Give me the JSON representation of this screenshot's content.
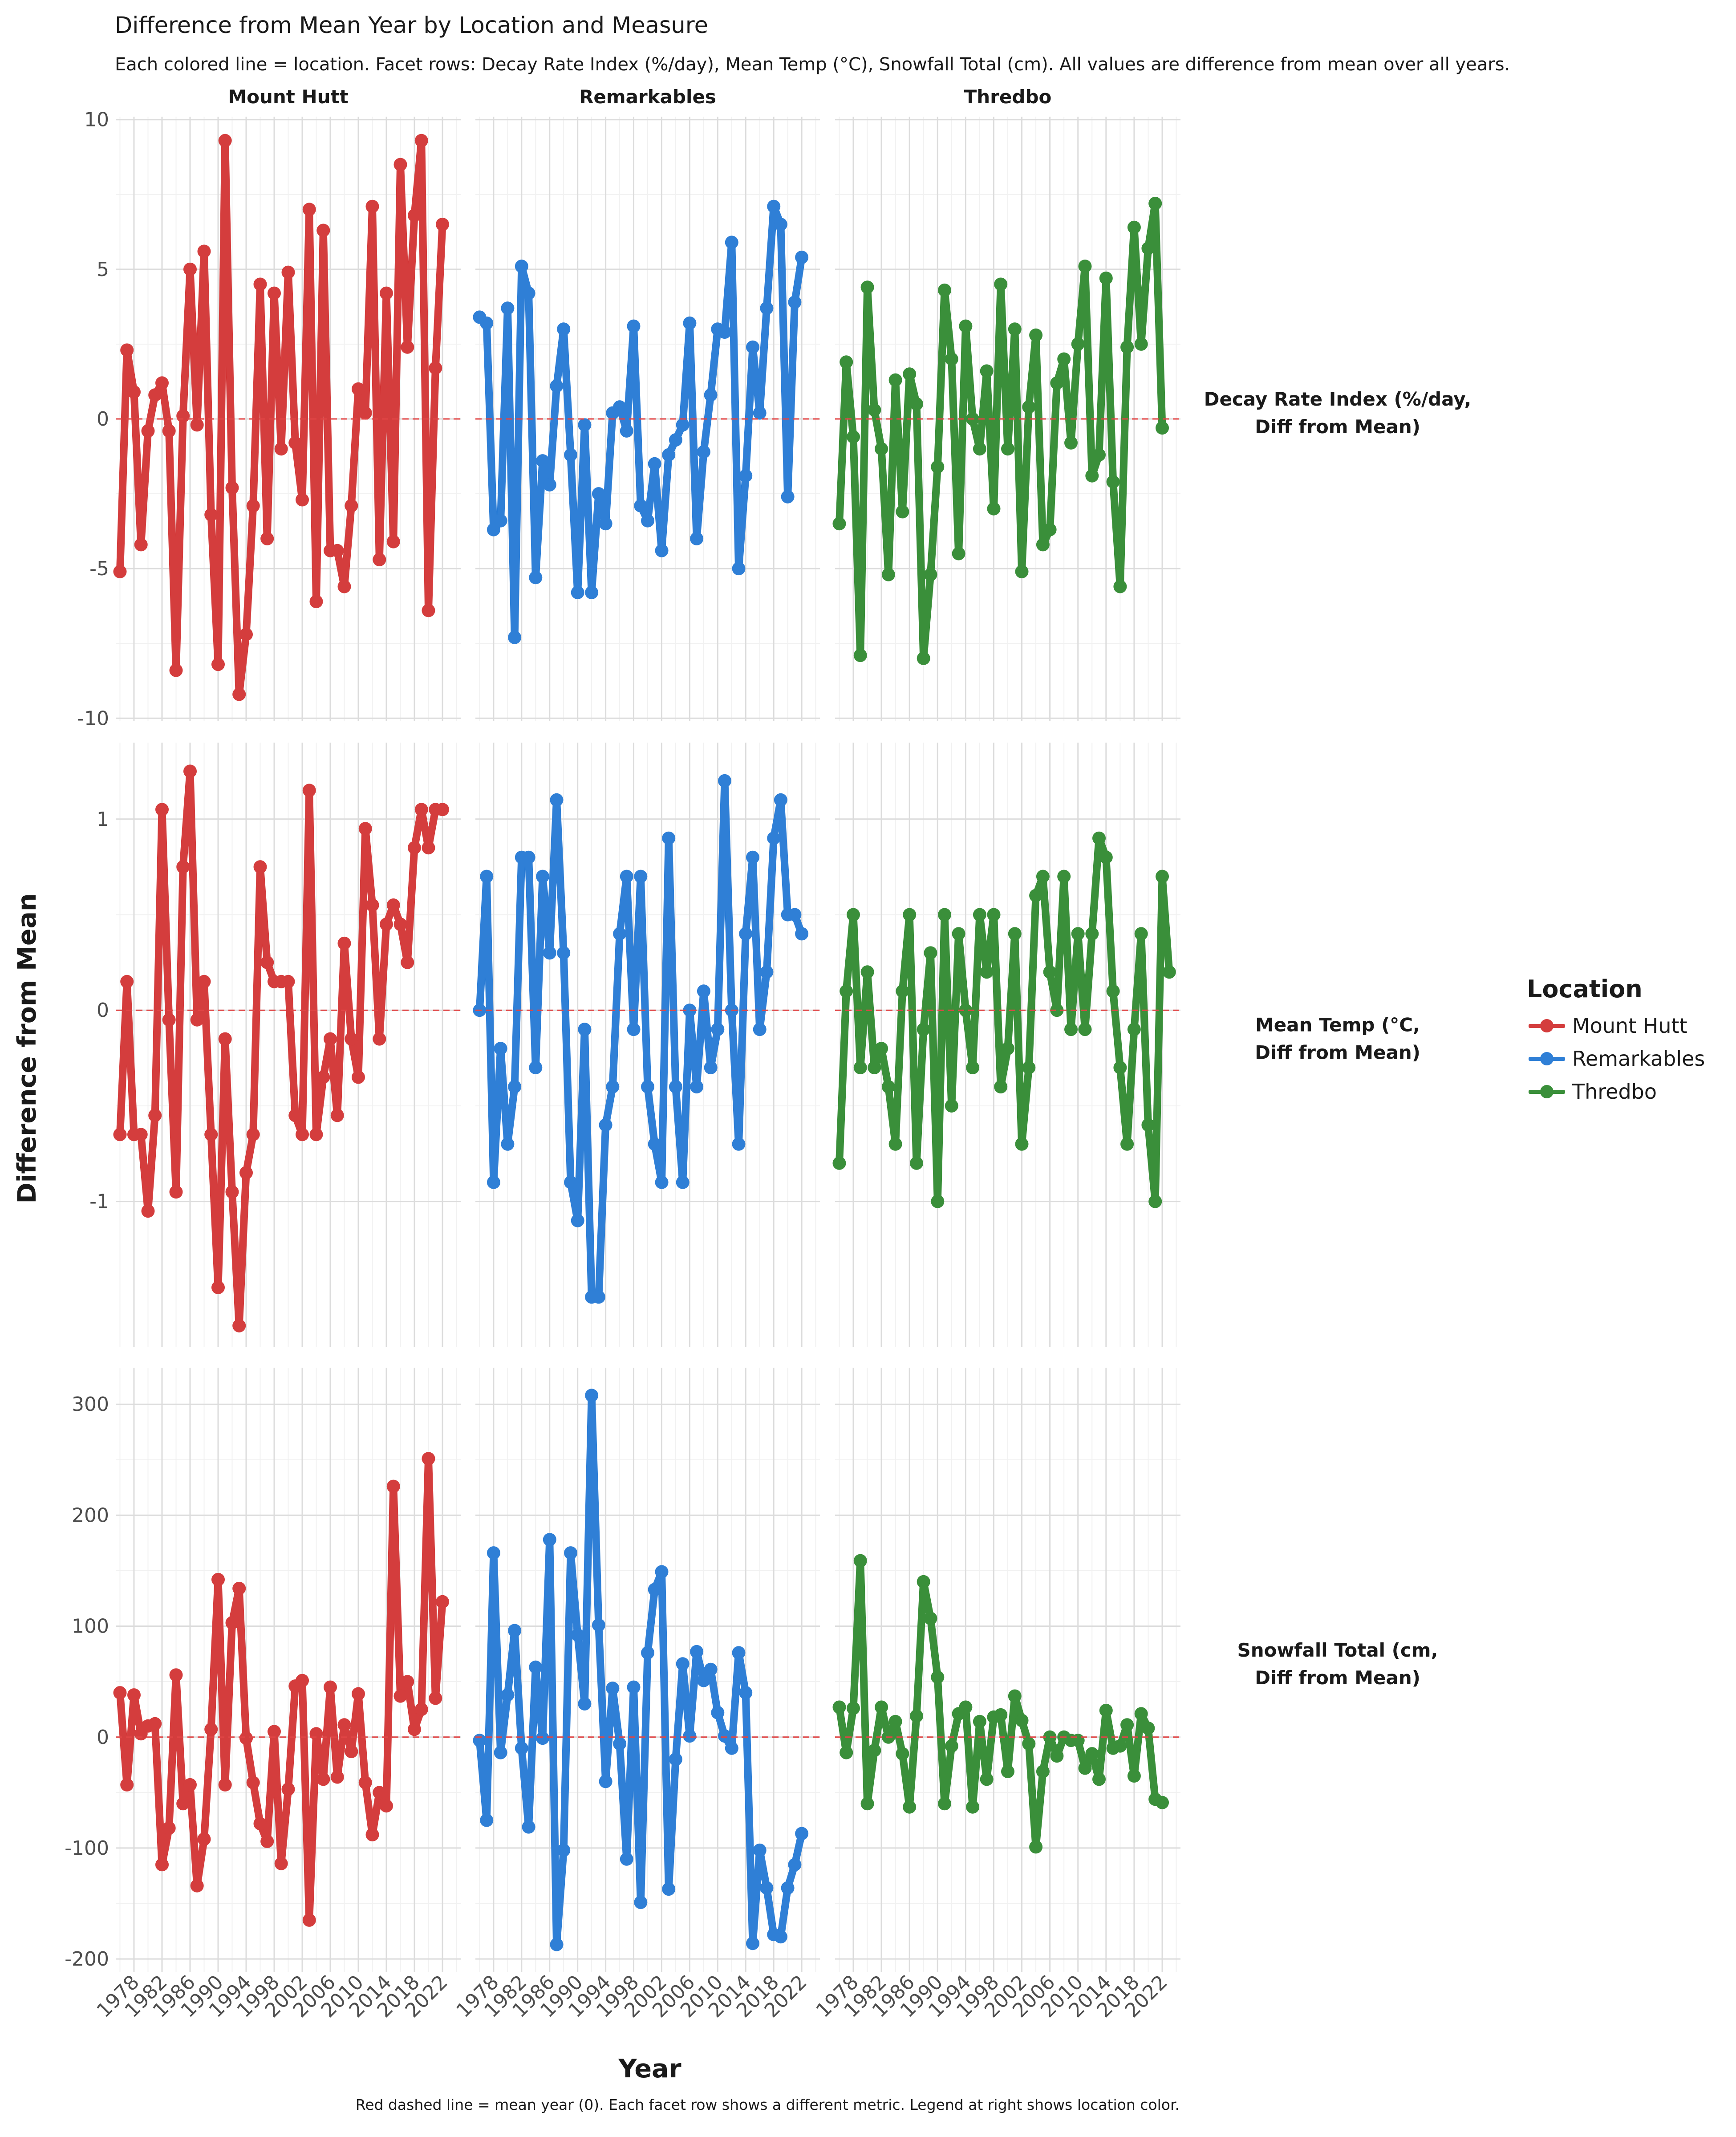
{
  "title": "Difference from Mean Year by Location and Measure",
  "subtitle": "Each colored line = location. Facet rows: Decay Rate Index (%/day), Mean Temp (°C), Snowfall Total (cm). All values are difference from mean over all years.",
  "caption": "Red dashed line = mean year (0). Each facet row shows a different metric. Legend at right shows location color.",
  "legend": {
    "title": "Location",
    "items": [
      {
        "label": "Mount Hutt",
        "color": "#d43d3d"
      },
      {
        "label": "Remarkables",
        "color": "#2f7fd6"
      },
      {
        "label": "Thredbo",
        "color": "#3a8f3a"
      }
    ]
  },
  "chart_data": {
    "type": "line",
    "xlabel": "Year",
    "ylabel": "Difference from Mean",
    "reference_line": {
      "y": 0,
      "style": "dashed",
      "color": "#e04545"
    },
    "columns": [
      "Mount Hutt",
      "Remarkables",
      "Thredbo"
    ],
    "x_ticks": [
      1978,
      1982,
      1986,
      1990,
      1994,
      1998,
      2002,
      2006,
      2010,
      2014,
      2018,
      2022
    ],
    "xlim": [
      1975.4,
      2024.6
    ],
    "rows": [
      {
        "label": "Decay Rate Index (%/day,\nDiff from Mean)",
        "ylim": [
          -10.1,
          10.1
        ],
        "y_ticks": [
          -10,
          -5,
          0,
          5,
          10
        ],
        "y_tick_labels": [
          "-10",
          "-5",
          "0",
          "5",
          "10"
        ],
        "series": [
          {
            "name": "Mount Hutt",
            "x_start": 1976,
            "values": [
              -5.1,
              2.3,
              0.9,
              -4.2,
              -0.4,
              0.8,
              1.2,
              -0.4,
              -8.4,
              0.1,
              5.0,
              -0.2,
              5.6,
              -3.2,
              -8.2,
              9.3,
              -2.3,
              -9.2,
              -7.2,
              -2.9,
              4.5,
              -4.0,
              4.2,
              -1.0,
              4.9,
              -0.8,
              -2.7,
              7.0,
              -6.1,
              6.3,
              -4.4,
              -4.4,
              -5.6,
              -2.9,
              1.0,
              0.2,
              7.1,
              -4.7,
              4.2,
              -4.1,
              8.5,
              2.4,
              6.8,
              9.3,
              -6.4,
              1.7,
              6.5
            ]
          },
          {
            "name": "Remarkables",
            "x_start": 1976,
            "values": [
              3.4,
              3.2,
              -3.7,
              -3.4,
              3.7,
              -7.3,
              5.1,
              4.2,
              -5.3,
              -1.4,
              -2.2,
              1.1,
              3.0,
              -1.2,
              -5.8,
              -0.2,
              -5.8,
              -2.5,
              -3.5,
              0.2,
              0.4,
              -0.4,
              3.1,
              -2.9,
              -3.4,
              -1.5,
              -4.4,
              -1.2,
              -0.7,
              -0.2,
              3.2,
              -4.0,
              -1.1,
              0.8,
              3.0,
              2.9,
              5.9,
              -5.0,
              -1.9,
              2.4,
              0.2,
              3.7,
              7.1,
              6.5,
              -2.6,
              3.9,
              5.4
            ]
          },
          {
            "name": "Thredbo",
            "x_start": 1976,
            "values": [
              -3.5,
              1.9,
              -0.6,
              -7.9,
              4.4,
              0.3,
              -1.0,
              -5.2,
              1.3,
              -3.1,
              1.5,
              0.5,
              -8.0,
              -5.2,
              -1.6,
              4.3,
              2.0,
              -4.5,
              3.1,
              0.0,
              -1.0,
              1.6,
              -3.0,
              4.5,
              -1.0,
              3.0,
              -5.1,
              0.4,
              2.8,
              -4.2,
              -3.7,
              1.2,
              2.0,
              -0.8,
              2.5,
              5.1,
              -1.9,
              -1.2,
              4.7,
              -2.1,
              -5.6,
              2.4,
              6.4,
              2.5,
              5.7,
              7.2,
              -0.3
            ]
          }
        ]
      },
      {
        "label": "Mean Temp (°C,\nDiff from Mean)",
        "ylim": [
          -1.76,
          1.4
        ],
        "y_ticks": [
          -1,
          0,
          1
        ],
        "y_tick_labels": [
          "-1",
          "0",
          "1"
        ],
        "series": [
          {
            "name": "Mount Hutt",
            "x_start": 1976,
            "values": [
              -0.65,
              0.15,
              -0.65,
              -0.65,
              -1.05,
              -0.55,
              1.05,
              -0.05,
              -0.95,
              0.75,
              1.25,
              -0.05,
              0.15,
              -0.65,
              -1.45,
              -0.15,
              -0.95,
              -1.65,
              -0.85,
              -0.65,
              0.75,
              0.25,
              0.15,
              0.15,
              0.15,
              -0.55,
              -0.65,
              1.15,
              -0.65,
              -0.35,
              -0.15,
              -0.55,
              0.35,
              -0.15,
              -0.35,
              0.95,
              0.55,
              -0.15,
              0.45,
              0.55,
              0.45,
              0.25,
              0.85,
              1.05,
              0.85,
              1.05,
              1.05
            ]
          },
          {
            "name": "Remarkables",
            "x_start": 1976,
            "values": [
              0.0,
              0.7,
              -0.9,
              -0.2,
              -0.7,
              -0.4,
              0.8,
              0.8,
              -0.3,
              0.7,
              0.3,
              1.1,
              0.3,
              -0.9,
              -1.1,
              -0.1,
              -1.5,
              -1.5,
              -0.6,
              -0.4,
              0.4,
              0.7,
              -0.1,
              0.7,
              -0.4,
              -0.7,
              -0.9,
              0.9,
              -0.4,
              -0.9,
              0.0,
              -0.4,
              0.1,
              -0.3,
              -0.1,
              1.2,
              0.0,
              -0.7,
              0.4,
              0.8,
              -0.1,
              0.2,
              0.9,
              1.1,
              0.5,
              0.5,
              0.4
            ]
          },
          {
            "name": "Thredbo",
            "x_start": 1976,
            "values": [
              -0.8,
              0.1,
              0.5,
              -0.3,
              0.2,
              -0.3,
              -0.2,
              -0.4,
              -0.7,
              0.1,
              0.5,
              -0.8,
              -0.1,
              0.3,
              -1.0,
              0.5,
              -0.5,
              0.4,
              0.0,
              -0.3,
              0.5,
              0.2,
              0.5,
              -0.4,
              -0.2,
              0.4,
              -0.7,
              -0.3,
              0.6,
              0.7,
              0.2,
              0.0,
              0.7,
              -0.1,
              0.4,
              -0.1,
              0.4,
              0.9,
              0.8,
              0.1,
              -0.3,
              -0.7,
              -0.1,
              0.4,
              -0.6,
              -1.0,
              0.7,
              0.2
            ]
          }
        ]
      },
      {
        "label": "Snowfall Total (cm,\nDiff from Mean)",
        "ylim": [
          -212,
          333
        ],
        "y_ticks": [
          -200,
          -100,
          0,
          100,
          200,
          300
        ],
        "y_tick_labels": [
          "-200",
          "-100",
          "0",
          "100",
          "200",
          "300"
        ],
        "series": [
          {
            "name": "Mount Hutt",
            "x_start": 1976,
            "values": [
              40,
              -43,
              38,
              3,
              10,
              12,
              -115,
              -82,
              56,
              -60,
              -43,
              -134,
              -92,
              7,
              142,
              -43,
              103,
              134,
              -1,
              -41,
              -78,
              -94,
              5,
              -114,
              -47,
              46,
              51,
              -165,
              3,
              -38,
              45,
              -36,
              11,
              -13,
              39,
              -41,
              -88,
              -50,
              -62,
              226,
              37,
              50,
              7,
              25,
              251,
              35,
              122
            ]
          },
          {
            "name": "Remarkables",
            "x_start": 1976,
            "values": [
              -3,
              -75,
              166,
              -14,
              38,
              96,
              -10,
              -81,
              63,
              -1,
              178,
              -187,
              -102,
              166,
              92,
              30,
              308,
              101,
              -40,
              44,
              -6,
              -110,
              45,
              -149,
              76,
              133,
              149,
              -137,
              -20,
              66,
              1,
              77,
              51,
              61,
              22,
              1,
              -10,
              76,
              40,
              -186,
              -102,
              -136,
              -178,
              -180,
              -136,
              -115,
              -87
            ]
          },
          {
            "name": "Thredbo",
            "x_start": 1976,
            "values": [
              27,
              -14,
              26,
              159,
              -60,
              -12,
              27,
              0,
              14,
              -15,
              -63,
              19,
              140,
              107,
              54,
              -60,
              -8,
              21,
              27,
              -63,
              14,
              -38,
              18,
              20,
              -31,
              37,
              15,
              -6,
              -99,
              -31,
              0,
              -17,
              0,
              -3,
              -3,
              -28,
              -15,
              -38,
              24,
              -10,
              -8,
              11,
              -35,
              21,
              8,
              -56,
              -59
            ]
          }
        ]
      }
    ]
  }
}
